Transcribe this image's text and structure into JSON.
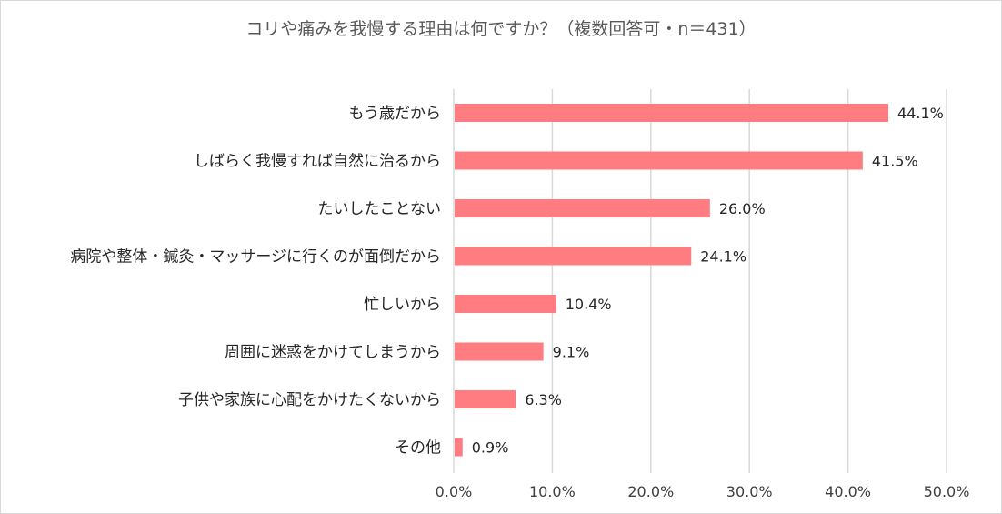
{
  "colors": {
    "bar": "#ff7c80",
    "grid": "#d9d9d9",
    "text": "#262626",
    "title": "#595959"
  },
  "chart_data": {
    "type": "bar",
    "orientation": "horizontal",
    "title": "コリや痛みを我慢する理由は何ですか？（複数回答可・n＝431）",
    "categories": [
      "もう歳だから",
      "しばらく我慢すれば自然に治るから",
      "たいしたことない",
      "病院や整体・鍼灸・マッサージに行くのが面倒だから",
      "忙しいから",
      "周囲に迷惑をかけてしまうから",
      "子供や家族に心配をかけたくないから",
      "その他"
    ],
    "values": [
      44.1,
      41.5,
      26.0,
      24.1,
      10.4,
      9.1,
      6.3,
      0.9
    ],
    "value_labels": [
      "44.1%",
      "41.5%",
      "26.0%",
      "24.1%",
      "10.4%",
      "9.1%",
      "6.3%",
      "0.9%"
    ],
    "xlim": [
      0,
      50
    ],
    "xticks": [
      0,
      10,
      20,
      30,
      40,
      50
    ],
    "xtick_labels": [
      "0.0%",
      "10.0%",
      "20.0%",
      "30.0%",
      "40.0%",
      "50.0%"
    ],
    "grid": true,
    "legend": "none"
  }
}
